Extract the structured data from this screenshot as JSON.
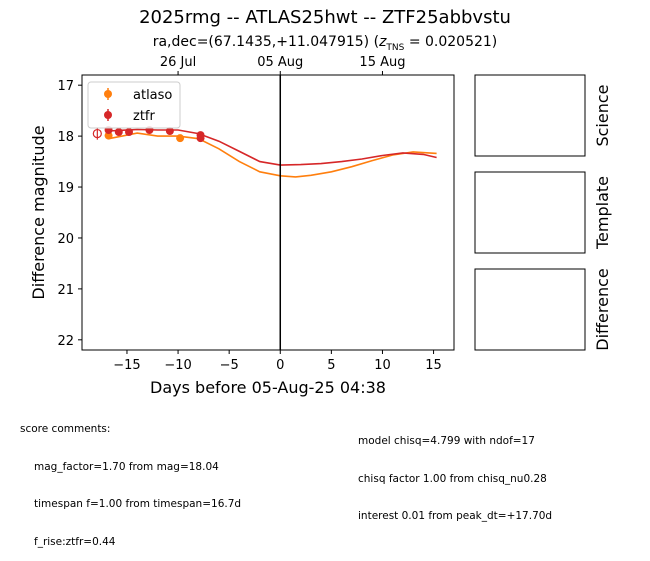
{
  "title": "2025rmg -- ATLAS25hwt -- ZTF25abbvstu",
  "subtitle": {
    "prefix": "ra,dec=(67.1435,+11.047915) (",
    "z_label": "z",
    "z_sub": "TNS",
    "z_value": " = 0.020521)"
  },
  "chart_data": {
    "type": "scatter",
    "title": "2025rmg -- ATLAS25hwt -- ZTF25abbvstu",
    "xlabel": "Days before 05-Aug-25 04:38",
    "ylabel": "Difference magnitude",
    "xlim": [
      -19.4,
      17
    ],
    "ylim": [
      22.2,
      16.8
    ],
    "y_inverted": true,
    "x_ticks": [
      -15,
      -10,
      -5,
      0,
      5,
      10,
      15
    ],
    "x_tick_labels": [
      "−15",
      "−10",
      "−5",
      "0",
      "5",
      "10",
      "15"
    ],
    "y_ticks": [
      17,
      18,
      19,
      20,
      21,
      22
    ],
    "y_tick_labels": [
      "17",
      "18",
      "19",
      "20",
      "21",
      "22"
    ],
    "top_axis_ticks": [
      {
        "x": -10,
        "label": "26 Jul"
      },
      {
        "x": 0,
        "label": "05 Aug"
      },
      {
        "x": 10,
        "label": "15 Aug"
      }
    ],
    "vertical_line_x": 0,
    "legend_position": "upper-left",
    "series": [
      {
        "name": "atlaso",
        "color": "#ff7f0e",
        "points": [
          {
            "x": -16.8,
            "y": 17.99,
            "err": 0.04
          },
          {
            "x": -9.8,
            "y": 18.04,
            "err": 0.03
          }
        ],
        "model": [
          [
            -16.8,
            18.05
          ],
          [
            -14,
            17.94
          ],
          [
            -12,
            18.0
          ],
          [
            -10,
            18.0
          ],
          [
            -8,
            18.05
          ],
          [
            -6,
            18.25
          ],
          [
            -4,
            18.5
          ],
          [
            -2,
            18.7
          ],
          [
            0,
            18.78
          ],
          [
            1.5,
            18.8
          ],
          [
            3,
            18.77
          ],
          [
            5,
            18.7
          ],
          [
            7,
            18.6
          ],
          [
            9,
            18.48
          ],
          [
            11,
            18.37
          ],
          [
            13,
            18.31
          ],
          [
            15.3,
            18.34
          ]
        ]
      },
      {
        "name": "ztfr",
        "color": "#d62728",
        "points": [
          {
            "x": -16.8,
            "y": 17.88,
            "err": 0.07
          },
          {
            "x": -15.8,
            "y": 17.92,
            "err": 0.05
          },
          {
            "x": -14.8,
            "y": 17.92,
            "err": 0.05
          },
          {
            "x": -12.8,
            "y": 17.88,
            "err": 0.05
          },
          {
            "x": -10.8,
            "y": 17.9,
            "err": 0.06
          },
          {
            "x": -7.8,
            "y": 17.98,
            "err": 0.07
          },
          {
            "x": -7.8,
            "y": 18.04,
            "err": 0.07
          }
        ],
        "open_points": [
          {
            "x": -17.9,
            "y": 17.95,
            "err": 0.12
          }
        ],
        "model": [
          [
            -16.8,
            17.9
          ],
          [
            -14,
            17.87
          ],
          [
            -12,
            17.88
          ],
          [
            -10,
            17.88
          ],
          [
            -8,
            17.95
          ],
          [
            -6,
            18.1
          ],
          [
            -4,
            18.3
          ],
          [
            -2,
            18.5
          ],
          [
            0,
            18.57
          ],
          [
            2,
            18.56
          ],
          [
            4,
            18.54
          ],
          [
            6,
            18.5
          ],
          [
            8,
            18.45
          ],
          [
            10,
            18.38
          ],
          [
            12,
            18.33
          ],
          [
            14,
            18.36
          ],
          [
            15.3,
            18.42
          ]
        ]
      }
    ]
  },
  "side_panels": [
    "Science",
    "Template",
    "Difference"
  ],
  "comments_left": {
    "heading": "score comments:",
    "lines": [
      "mag_factor=1.70 from mag=18.04",
      "timespan f=1.00 from timespan=16.7d",
      "f_rise:ztfr=0.44"
    ]
  },
  "comments_right": {
    "lines": [
      "model chisq=4.799 with ndof=17",
      "chisq factor 1.00 from chisq_nu0.28",
      "interest 0.01 from peak_dt=+17.70d"
    ]
  }
}
